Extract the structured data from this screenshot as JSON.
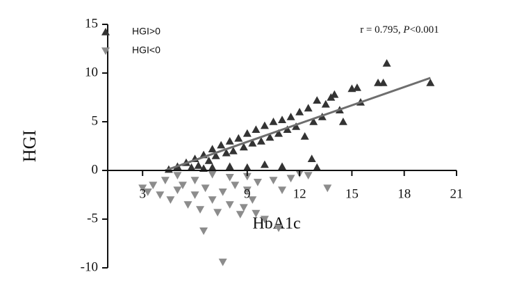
{
  "chart_data": {
    "type": "scatter",
    "x_label": "HbA1c",
    "y_label": "HGI",
    "annotation": [
      "r = 0.795, ",
      "P",
      "<0.001"
    ],
    "xlim": [
      1,
      21
    ],
    "xticks": [
      3,
      9,
      12,
      15,
      18,
      21
    ],
    "ylim": [
      -10,
      15
    ],
    "yticks": [
      -10,
      -5,
      0,
      5,
      10,
      15
    ],
    "series": [
      {
        "name": "HGI>0",
        "color": "#333333",
        "marker": "triangle-up",
        "x": [
          4.5,
          5,
          5.5,
          6,
          6.2,
          6.5,
          6.8,
          7,
          7.2,
          7.5,
          7.8,
          8,
          8.2,
          8.5,
          8.8,
          9,
          9.3,
          9.5,
          9.8,
          10,
          10.3,
          10.5,
          10.8,
          11,
          11.3,
          11.5,
          11.8,
          12,
          12.3,
          12.5,
          12.8,
          13,
          13.3,
          13.5,
          13.8,
          14,
          14.3,
          14.5,
          15,
          15.3,
          15.5,
          16.5,
          16.8,
          17,
          19.5,
          13,
          12.7,
          11,
          10,
          9,
          8,
          7,
          6.5,
          5.8
        ],
        "values": [
          0.1,
          0.4,
          0.8,
          1.2,
          0.5,
          1.6,
          1,
          2.2,
          1.5,
          2.6,
          1.8,
          3,
          2,
          3.3,
          2.4,
          3.8,
          2.8,
          4.2,
          3,
          4.6,
          3.4,
          5,
          3.8,
          5.2,
          4.2,
          5.5,
          4.5,
          6,
          3.5,
          6.4,
          5,
          7.2,
          5.5,
          6.8,
          7.5,
          7.8,
          6.2,
          5,
          8.4,
          8.5,
          7,
          9,
          9,
          11,
          9,
          0.3,
          1.2,
          0.4,
          0.6,
          0.3,
          0.4,
          0.3,
          0.2,
          0.3
        ]
      },
      {
        "name": "HGI<0",
        "color": "#8c8c8c",
        "marker": "triangle-down",
        "x": [
          3,
          3.3,
          3.6,
          4,
          4.3,
          4.6,
          5,
          5.3,
          5.6,
          6,
          6.3,
          6.6,
          7,
          7.3,
          7.6,
          8,
          8.3,
          8.6,
          9,
          9.3,
          9.6,
          10,
          10.5,
          11,
          11.5,
          12,
          12.5,
          13.6,
          6.5,
          7.6,
          10.8,
          6,
          5,
          8,
          9,
          7,
          8.8,
          9.5
        ],
        "values": [
          -1.8,
          -2.2,
          -1.5,
          -2.5,
          -1,
          -3,
          -2,
          -1.5,
          -3.5,
          -2.5,
          -4,
          -1.8,
          -3,
          -4.3,
          -2.2,
          -3.5,
          -1.5,
          -4.5,
          -2,
          -3,
          -1.2,
          -5,
          -1,
          -2,
          -0.8,
          -0.3,
          -0.5,
          -1.8,
          -6.2,
          -9.4,
          -5.9,
          -1,
          -0.5,
          -0.7,
          -0.6,
          -0.4,
          -3.8,
          -4.4
        ]
      }
    ],
    "trend_line": {
      "color": "#6e6e6e",
      "x": [
        4.3,
        19.5
      ],
      "values": [
        0,
        9.5
      ]
    }
  }
}
